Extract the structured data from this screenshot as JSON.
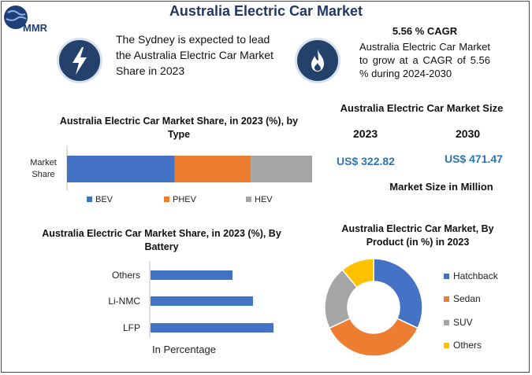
{
  "header": {
    "logo_text": "MMR",
    "title": "Australia Electric Car Market"
  },
  "highlights": {
    "region_text": "The Sydney is expected to lead the Australia Electric Car Market Share in 2023",
    "region_icon": "lightning-icon",
    "cagr_icon": "flame-icon",
    "cagr_title": "5.56 % CAGR",
    "cagr_text": "Australia Electric Car Market to grow at a CAGR of 5.56 % during 2024-2030"
  },
  "market_size": {
    "title": "Australia Electric Car Market Size",
    "year_start": "2023",
    "year_end": "2030",
    "value_start": "US$ 322.82",
    "value_end": "US$ 471.47",
    "unit_note": "Market Size in Million"
  },
  "colors": {
    "navy": "#24416b",
    "title": "#1f3864",
    "accent_blue": "#2e75b6",
    "blue": "#4472c4",
    "orange": "#ed7d31",
    "gray": "#a5a5a5",
    "yellow": "#ffc000"
  },
  "chart_data": [
    {
      "type": "bar",
      "orientation": "horizontal-stacked",
      "title": "Australia Electric Car Market Share, in 2023 (%), by Type",
      "categories": [
        "Market Share"
      ],
      "series": [
        {
          "name": "BEV",
          "values": [
            44
          ],
          "color": "#4472c4"
        },
        {
          "name": "PHEV",
          "values": [
            31
          ],
          "color": "#ed7d31"
        },
        {
          "name": "HEV",
          "values": [
            25
          ],
          "color": "#a5a5a5"
        }
      ],
      "legend": "bottom"
    },
    {
      "type": "bar",
      "orientation": "horizontal",
      "title": "Australia Electric Car Market Share, in 2023 (%), By Battery",
      "categories": [
        "Others",
        "Li-NMC",
        "LFP"
      ],
      "values": [
        20,
        25,
        30
      ],
      "xlabel": "In Percentage",
      "color": "#4472c4"
    },
    {
      "type": "pie",
      "variant": "donut",
      "title": "Australia Electric Car Market, By Product (in %) in 2023",
      "categories": [
        "Hatchback",
        "Sedan",
        "SUV",
        "Others"
      ],
      "values": [
        32,
        36,
        21,
        11
      ],
      "colors": [
        "#4472c4",
        "#ed7d31",
        "#a5a5a5",
        "#ffc000"
      ],
      "legend": "right"
    }
  ]
}
